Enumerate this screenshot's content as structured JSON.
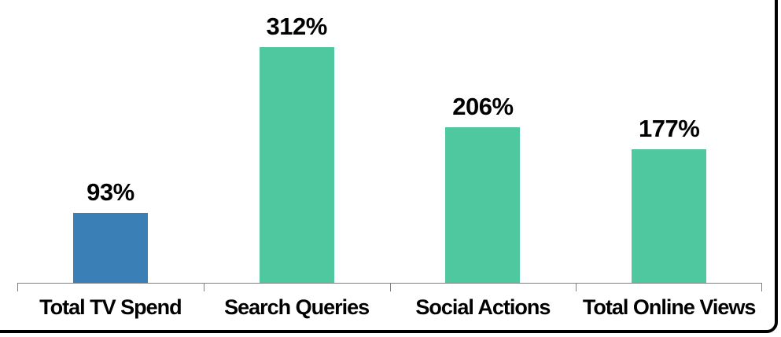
{
  "chart_data": {
    "type": "bar",
    "categories": [
      "Total TV Spend",
      "Search Queries",
      "Social Actions",
      "Total Online Views"
    ],
    "values": [
      93,
      312,
      206,
      177
    ],
    "value_labels": [
      "93%",
      "312%",
      "206%",
      "177%"
    ],
    "bar_colors": [
      "#3A80B6",
      "#4FC8A0",
      "#4FC8A0",
      "#4FC8A0"
    ],
    "title": "",
    "xlabel": "",
    "ylabel": "",
    "ylim": [
      0,
      375
    ],
    "grid": false,
    "legend": false,
    "axis_color": "#808080",
    "tick_positions_pct": [
      0,
      25,
      50,
      75,
      100
    ],
    "label_color": "#000000"
  },
  "frame": {
    "border_color": "#000000",
    "background": "#FFFFFF"
  }
}
